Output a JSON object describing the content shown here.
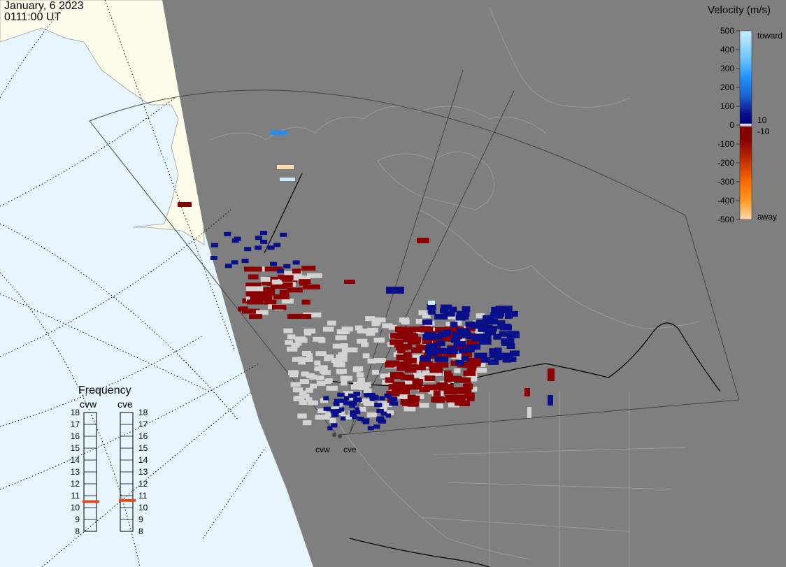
{
  "header": {
    "date": "January, 6 2023",
    "time": "0111:00 UT"
  },
  "velocity_scale": {
    "title": "Velocity (m/s)",
    "ticks": [
      "500",
      "400",
      "300",
      "200",
      "100",
      "0",
      "-100",
      "-200",
      "-300",
      "-400",
      "-500"
    ],
    "tick_values": [
      500,
      400,
      300,
      200,
      100,
      0,
      -100,
      -200,
      -300,
      -400,
      -500
    ],
    "toward_label": "toward",
    "away_label": "away",
    "pos_threshold_label": "10",
    "neg_threshold_label": "-10",
    "colors": {
      "toward_high": "#c6eefe",
      "toward_mid": "#1e90ff",
      "toward_low": "#0a0f8a",
      "away_low": "#8b0000",
      "away_mid": "#ff8c00",
      "away_high": "#ffd9b0",
      "near_zero": "#d3d3d3"
    }
  },
  "frequency_panel": {
    "title": "Frequency",
    "ticks": [
      "18",
      "17",
      "16",
      "15",
      "14",
      "13",
      "12",
      "11",
      "10",
      "9",
      "8"
    ],
    "radars": [
      {
        "name": "cvw",
        "frequency_mhz": 10.5
      },
      {
        "name": "cve",
        "frequency_mhz": 10.6
      }
    ]
  },
  "sites": [
    {
      "name": "cvw"
    },
    {
      "name": "cve"
    }
  ],
  "map_colors": {
    "ocean": "#e6f5fe",
    "land_day": "#fefdeb",
    "night": "#7f7f7f",
    "coastline": "#9b9b9b",
    "border": "#000000",
    "low_velocity": "#d3d3d3"
  }
}
